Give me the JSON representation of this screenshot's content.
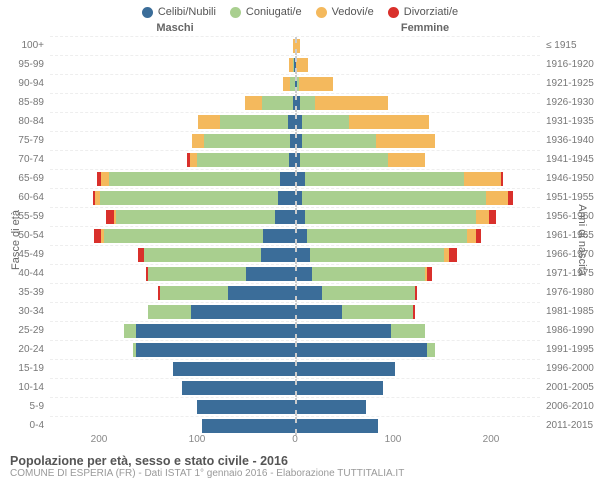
{
  "type": "population-pyramid",
  "legend": [
    {
      "label": "Celibi/Nubili",
      "color": "#3b6d99"
    },
    {
      "label": "Coniugati/e",
      "color": "#a9cf8f"
    },
    {
      "label": "Vedovi/e",
      "color": "#f4b95d"
    },
    {
      "label": "Divorziati/e",
      "color": "#d9302b"
    }
  ],
  "headers": {
    "male": "Maschi",
    "female": "Femmine"
  },
  "yaxis_left_label": "Fasce di età",
  "yaxis_right_label": "Anni di nascita",
  "xmax": 200,
  "xticks": [
    "200",
    "100",
    "0",
    "100",
    "200"
  ],
  "colors": {
    "celibi": "#3b6d99",
    "coniugati": "#a9cf8f",
    "vedovi": "#f4b95d",
    "divorziati": "#d9302b",
    "grid": "#eeeeee",
    "centerline": "#cccccc",
    "bg": "#ffffff"
  },
  "rows": [
    {
      "age": "100+",
      "birth": "≤ 1915",
      "m": {
        "c": 0,
        "co": 0,
        "v": 2,
        "d": 0
      },
      "f": {
        "c": 0,
        "co": 0,
        "v": 4,
        "d": 0
      }
    },
    {
      "age": "95-99",
      "birth": "1916-1920",
      "m": {
        "c": 1,
        "co": 1,
        "v": 3,
        "d": 0
      },
      "f": {
        "c": 1,
        "co": 0,
        "v": 10,
        "d": 0
      }
    },
    {
      "age": "90-94",
      "birth": "1921-1925",
      "m": {
        "c": 0,
        "co": 4,
        "v": 6,
        "d": 0
      },
      "f": {
        "c": 2,
        "co": 1,
        "v": 28,
        "d": 0
      }
    },
    {
      "age": "85-89",
      "birth": "1926-1930",
      "m": {
        "c": 2,
        "co": 25,
        "v": 14,
        "d": 0
      },
      "f": {
        "c": 4,
        "co": 12,
        "v": 60,
        "d": 0
      }
    },
    {
      "age": "80-84",
      "birth": "1931-1935",
      "m": {
        "c": 6,
        "co": 55,
        "v": 18,
        "d": 0
      },
      "f": {
        "c": 6,
        "co": 38,
        "v": 65,
        "d": 0
      }
    },
    {
      "age": "75-79",
      "birth": "1936-1940",
      "m": {
        "c": 4,
        "co": 70,
        "v": 10,
        "d": 0
      },
      "f": {
        "c": 6,
        "co": 60,
        "v": 48,
        "d": 0
      }
    },
    {
      "age": "70-74",
      "birth": "1941-1945",
      "m": {
        "c": 5,
        "co": 75,
        "v": 6,
        "d": 2
      },
      "f": {
        "c": 4,
        "co": 72,
        "v": 30,
        "d": 0
      }
    },
    {
      "age": "65-69",
      "birth": "1946-1950",
      "m": {
        "c": 12,
        "co": 140,
        "v": 6,
        "d": 4
      },
      "f": {
        "c": 8,
        "co": 130,
        "v": 30,
        "d": 2
      }
    },
    {
      "age": "60-64",
      "birth": "1951-1955",
      "m": {
        "c": 14,
        "co": 145,
        "v": 4,
        "d": 2
      },
      "f": {
        "c": 6,
        "co": 150,
        "v": 18,
        "d": 4
      }
    },
    {
      "age": "55-59",
      "birth": "1956-1960",
      "m": {
        "c": 16,
        "co": 130,
        "v": 2,
        "d": 6
      },
      "f": {
        "c": 8,
        "co": 140,
        "v": 10,
        "d": 6
      }
    },
    {
      "age": "50-54",
      "birth": "1961-1965",
      "m": {
        "c": 26,
        "co": 130,
        "v": 2,
        "d": 6
      },
      "f": {
        "c": 10,
        "co": 130,
        "v": 8,
        "d": 4
      }
    },
    {
      "age": "45-49",
      "birth": "1966-1970",
      "m": {
        "c": 28,
        "co": 95,
        "v": 0,
        "d": 5
      },
      "f": {
        "c": 12,
        "co": 110,
        "v": 4,
        "d": 6
      }
    },
    {
      "age": "40-44",
      "birth": "1971-1975",
      "m": {
        "c": 40,
        "co": 80,
        "v": 0,
        "d": 2
      },
      "f": {
        "c": 14,
        "co": 92,
        "v": 2,
        "d": 4
      }
    },
    {
      "age": "35-39",
      "birth": "1976-1980",
      "m": {
        "c": 55,
        "co": 55,
        "v": 0,
        "d": 2
      },
      "f": {
        "c": 22,
        "co": 76,
        "v": 0,
        "d": 2
      }
    },
    {
      "age": "30-34",
      "birth": "1981-1985",
      "m": {
        "c": 85,
        "co": 35,
        "v": 0,
        "d": 0
      },
      "f": {
        "c": 38,
        "co": 58,
        "v": 0,
        "d": 2
      }
    },
    {
      "age": "25-29",
      "birth": "1986-1990",
      "m": {
        "c": 130,
        "co": 10,
        "v": 0,
        "d": 0
      },
      "f": {
        "c": 78,
        "co": 28,
        "v": 0,
        "d": 0
      }
    },
    {
      "age": "20-24",
      "birth": "1991-1995",
      "m": {
        "c": 130,
        "co": 2,
        "v": 0,
        "d": 0
      },
      "f": {
        "c": 108,
        "co": 6,
        "v": 0,
        "d": 0
      }
    },
    {
      "age": "15-19",
      "birth": "1996-2000",
      "m": {
        "c": 100,
        "co": 0,
        "v": 0,
        "d": 0
      },
      "f": {
        "c": 82,
        "co": 0,
        "v": 0,
        "d": 0
      }
    },
    {
      "age": "10-14",
      "birth": "2001-2005",
      "m": {
        "c": 92,
        "co": 0,
        "v": 0,
        "d": 0
      },
      "f": {
        "c": 72,
        "co": 0,
        "v": 0,
        "d": 0
      }
    },
    {
      "age": "5-9",
      "birth": "2006-2010",
      "m": {
        "c": 80,
        "co": 0,
        "v": 0,
        "d": 0
      },
      "f": {
        "c": 58,
        "co": 0,
        "v": 0,
        "d": 0
      }
    },
    {
      "age": "0-4",
      "birth": "2011-2015",
      "m": {
        "c": 76,
        "co": 0,
        "v": 0,
        "d": 0
      },
      "f": {
        "c": 68,
        "co": 0,
        "v": 0,
        "d": 0
      }
    }
  ],
  "footer": {
    "title": "Popolazione per età, sesso e stato civile - 2016",
    "subtitle": "COMUNE DI ESPERIA (FR) - Dati ISTAT 1° gennaio 2016 - Elaborazione TUTTITALIA.IT"
  }
}
